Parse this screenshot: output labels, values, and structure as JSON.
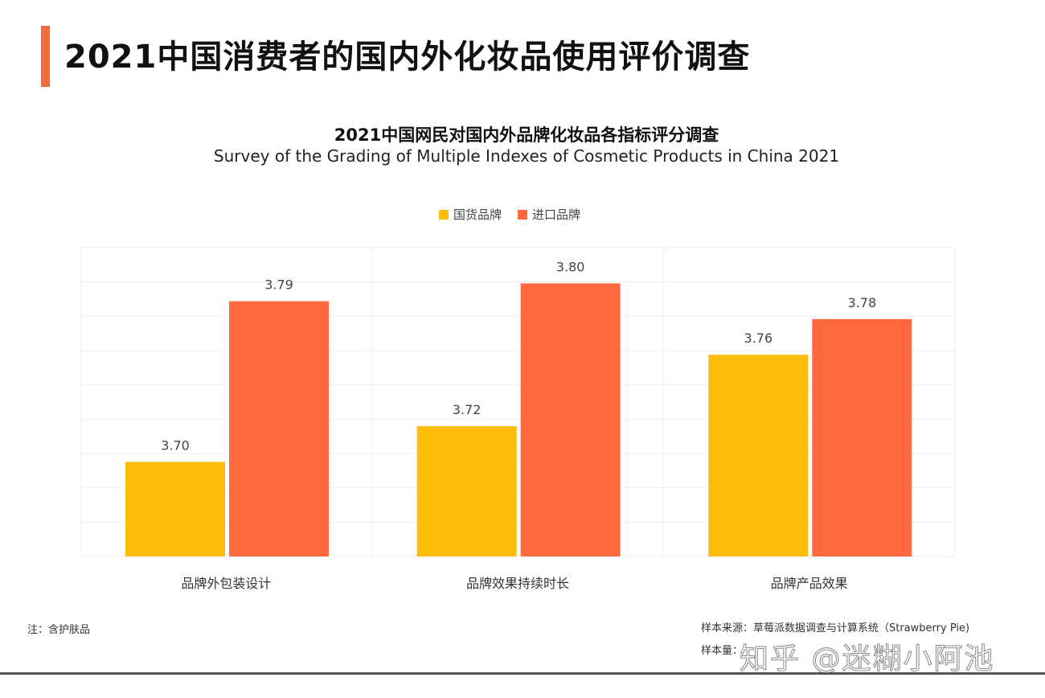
{
  "page_title": "2021中国消费者的国内外化妆品使用评价调查",
  "colors": {
    "accent": "#f26b3a",
    "domestic": "#fdbd0a",
    "imported": "#fe6a3d"
  },
  "chart_data": {
    "type": "bar",
    "title": "2021中国网民对国内外品牌化妆品各指标评分调查",
    "subtitle": "Survey of the Grading of Multiple Indexes of Cosmetic Products in China 2021",
    "categories": [
      "品牌外包装设计",
      "品牌效果持续时长",
      "品牌产品效果"
    ],
    "series": [
      {
        "name": "国货品牌",
        "values": [
          3.7,
          3.72,
          3.76
        ],
        "labels": [
          "3.70",
          "3.72",
          "3.76"
        ]
      },
      {
        "name": "进口品牌",
        "values": [
          3.79,
          3.8,
          3.78
        ],
        "labels": [
          "3.79",
          "3.80",
          "3.78"
        ]
      }
    ],
    "ylim": [
      3.647,
      3.82
    ],
    "grid": true,
    "legend": "top-center"
  },
  "footer": {
    "note": "注：含护肤品",
    "source": "样本来源：草莓派数据调查与计算系统（Strawberry Pie)",
    "sample": "样本量：",
    "watermark": "知乎 @迷糊小阿池"
  }
}
